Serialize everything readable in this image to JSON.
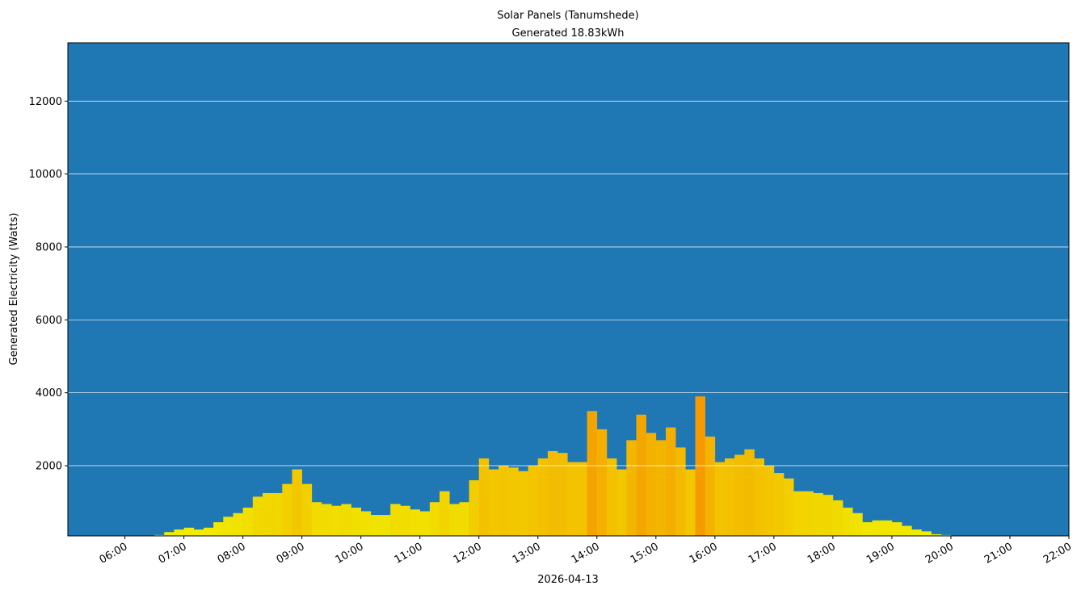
{
  "chart_data": {
    "type": "bar",
    "title": "Solar Panels (Tanumshede)",
    "subtitle": "Generated 18.83kWh",
    "y_label": "Generated Electricity (Watts)",
    "x_label": "2026-04-13",
    "background": "#1f77b4",
    "colormap": [
      "#f0f000",
      "#f59b00"
    ],
    "grid": true,
    "xlim": [
      302,
      1320
    ],
    "ylim": [
      75,
      13600
    ],
    "yticks": [
      2000,
      4000,
      6000,
      8000,
      10000,
      12000
    ],
    "xticks": [
      {
        "value": 360,
        "label": "06:00"
      },
      {
        "value": 420,
        "label": "07:00"
      },
      {
        "value": 480,
        "label": "08:00"
      },
      {
        "value": 540,
        "label": "09:00"
      },
      {
        "value": 600,
        "label": "10:00"
      },
      {
        "value": 660,
        "label": "11:00"
      },
      {
        "value": 720,
        "label": "12:00"
      },
      {
        "value": 780,
        "label": "13:00"
      },
      {
        "value": 840,
        "label": "14:00"
      },
      {
        "value": 900,
        "label": "15:00"
      },
      {
        "value": 960,
        "label": "16:00"
      },
      {
        "value": 1020,
        "label": "17:00"
      },
      {
        "value": 1080,
        "label": "18:00"
      },
      {
        "value": 1140,
        "label": "19:00"
      },
      {
        "value": 1200,
        "label": "20:00"
      },
      {
        "value": 1260,
        "label": "21:00"
      },
      {
        "value": 1320,
        "label": "22:00"
      }
    ],
    "x": [
      360,
      370,
      380,
      390,
      400,
      410,
      420,
      430,
      440,
      450,
      460,
      470,
      480,
      490,
      500,
      510,
      520,
      530,
      540,
      550,
      560,
      570,
      580,
      590,
      600,
      610,
      620,
      630,
      640,
      650,
      660,
      670,
      680,
      690,
      700,
      710,
      720,
      730,
      740,
      750,
      760,
      770,
      780,
      790,
      800,
      810,
      820,
      830,
      840,
      850,
      860,
      870,
      880,
      890,
      900,
      910,
      920,
      930,
      940,
      950,
      960,
      970,
      980,
      990,
      1000,
      1010,
      1020,
      1030,
      1040,
      1050,
      1060,
      1070,
      1080,
      1090,
      1100,
      1110,
      1120,
      1130,
      1140,
      1150,
      1160,
      1170,
      1180,
      1190,
      1200
    ],
    "values": [
      60,
      60,
      70,
      100,
      180,
      250,
      300,
      250,
      300,
      450,
      600,
      700,
      850,
      1150,
      1250,
      1250,
      1500,
      1900,
      1500,
      1000,
      950,
      900,
      950,
      850,
      750,
      650,
      650,
      950,
      900,
      800,
      750,
      1000,
      1300,
      950,
      1000,
      1600,
      2200,
      1900,
      2000,
      1950,
      1850,
      2000,
      2200,
      2400,
      2350,
      2100,
      2100,
      3500,
      3000,
      2200,
      1900,
      2700,
      3400,
      2900,
      2700,
      3050,
      2500,
      1900,
      3900,
      2800,
      2100,
      2200,
      2300,
      2450,
      2200,
      2000,
      1800,
      1650,
      1300,
      1300,
      1250,
      1200,
      1050,
      850,
      700,
      450,
      500,
      500,
      450,
      350,
      250,
      200,
      120,
      100,
      60
    ]
  }
}
